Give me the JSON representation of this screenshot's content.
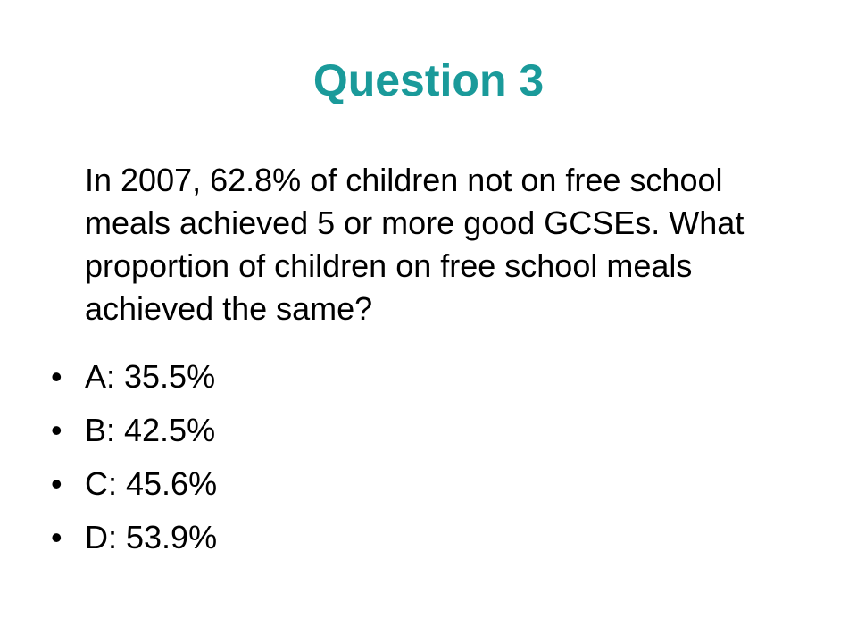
{
  "slide": {
    "title": "Question 3",
    "question": "In 2007, 62.8% of children not on free school meals achieved 5 or more good GCSEs. What proportion of children on free school meals achieved the same?",
    "bullet_char": "•",
    "options": [
      {
        "label": "A: 35.5%"
      },
      {
        "label": "B: 42.5%"
      },
      {
        "label": "C: 45.6%"
      },
      {
        "label": "D: 53.9%"
      }
    ],
    "colors": {
      "title": "#1a9a9a",
      "text": "#000000",
      "background": "#ffffff"
    }
  }
}
